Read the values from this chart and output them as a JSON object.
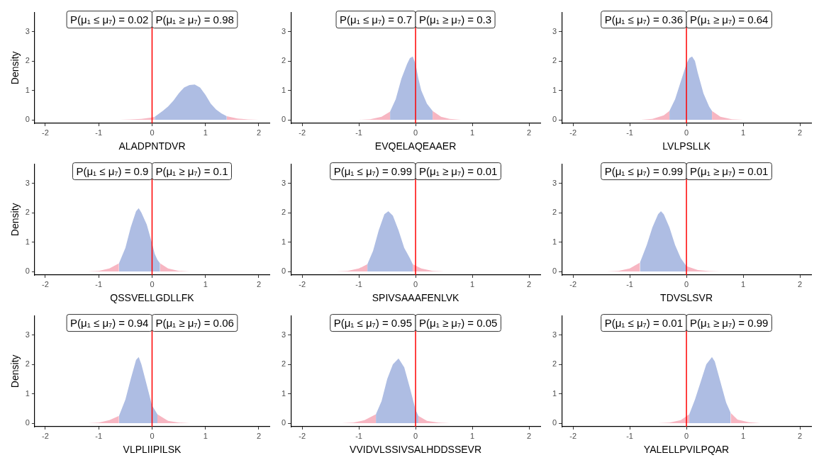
{
  "chart_data": [
    {
      "type": "area",
      "xlabel": "ALADPNTDVR",
      "ylabel": "Density",
      "xlim": [
        -2.2,
        2.2
      ],
      "xticks": [
        -2,
        -1,
        0,
        1,
        2
      ],
      "ylim": [
        -0.12,
        3.65
      ],
      "yticks": [
        0,
        1,
        2,
        3
      ],
      "grid": false,
      "legend": false,
      "ref_lines": [
        {
          "axis": "x",
          "value": 0,
          "color": "#ff0000"
        }
      ],
      "annotations": [
        "P(μ₁ ≤ μ₇) = 0.02",
        "P(μ₁ ≥ μ₇) = 0.98"
      ],
      "series": [
        {
          "color": "#f7b6c2",
          "x": [
            -0.6,
            -0.4,
            -0.2,
            0,
            0.05
          ],
          "values": [
            0,
            0.01,
            0.03,
            0.08,
            0.1
          ]
        },
        {
          "color": "#aebde3",
          "x": [
            0.05,
            0.2,
            0.3,
            0.4,
            0.5,
            0.6,
            0.7,
            0.8,
            0.9,
            1.0,
            1.1,
            1.2,
            1.3,
            1.4
          ],
          "values": [
            0.1,
            0.3,
            0.45,
            0.65,
            0.9,
            1.1,
            1.18,
            1.2,
            1.1,
            0.85,
            0.55,
            0.35,
            0.22,
            0.12
          ]
        },
        {
          "color": "#f7b6c2",
          "x": [
            1.4,
            1.6,
            1.8,
            2.0
          ],
          "values": [
            0.12,
            0.04,
            0.01,
            0
          ]
        }
      ]
    },
    {
      "type": "area",
      "xlabel": "EVQELAQEAAER",
      "xlim": [
        -2.2,
        2.2
      ],
      "xticks": [
        -2,
        -1,
        0,
        1,
        2
      ],
      "ylim": [
        -0.12,
        3.65
      ],
      "yticks": [
        0,
        1,
        2,
        3
      ],
      "grid": false,
      "legend": false,
      "ref_lines": [
        {
          "axis": "x",
          "value": 0,
          "color": "#ff0000"
        }
      ],
      "annotations": [
        "P(μ₁ ≤ μ₇) = 0.7",
        "P(μ₁ ≥ μ₇) = 0.3"
      ],
      "series": [
        {
          "color": "#f7b6c2",
          "x": [
            -1.0,
            -0.8,
            -0.6,
            -0.45
          ],
          "values": [
            0,
            0.02,
            0.1,
            0.28
          ]
        },
        {
          "color": "#aebde3",
          "x": [
            -0.45,
            -0.35,
            -0.25,
            -0.15,
            -0.1,
            -0.05,
            0,
            0.05,
            0.1,
            0.2,
            0.3
          ],
          "values": [
            0.28,
            0.7,
            1.4,
            1.9,
            2.1,
            2.15,
            1.9,
            1.4,
            1.0,
            0.55,
            0.3
          ]
        },
        {
          "color": "#f7b6c2",
          "x": [
            0.3,
            0.45,
            0.6,
            0.8
          ],
          "values": [
            0.3,
            0.1,
            0.03,
            0
          ]
        }
      ]
    },
    {
      "type": "area",
      "xlabel": "LVLPSLLK",
      "xlim": [
        -2.2,
        2.2
      ],
      "xticks": [
        -2,
        -1,
        0,
        1,
        2
      ],
      "ylim": [
        -0.12,
        3.65
      ],
      "yticks": [
        0,
        1,
        2,
        3
      ],
      "grid": false,
      "legend": false,
      "ref_lines": [
        {
          "axis": "x",
          "value": 0,
          "color": "#ff0000"
        }
      ],
      "annotations": [
        "P(μ₁ ≤ μ₇) = 0.36",
        "P(μ₁ ≥ μ₇) = 0.64"
      ],
      "series": [
        {
          "color": "#f7b6c2",
          "x": [
            -0.8,
            -0.6,
            -0.4,
            -0.3
          ],
          "values": [
            0,
            0.03,
            0.15,
            0.3
          ]
        },
        {
          "color": "#aebde3",
          "x": [
            -0.3,
            -0.2,
            -0.1,
            0,
            0.05,
            0.1,
            0.15,
            0.2,
            0.3,
            0.4,
            0.45
          ],
          "values": [
            0.3,
            0.7,
            1.3,
            1.9,
            2.1,
            2.15,
            2.0,
            1.6,
            0.9,
            0.45,
            0.3
          ]
        },
        {
          "color": "#f7b6c2",
          "x": [
            0.45,
            0.6,
            0.8,
            1.0
          ],
          "values": [
            0.3,
            0.1,
            0.02,
            0
          ]
        }
      ]
    },
    {
      "type": "area",
      "xlabel": "QSSVELLGDLLFK",
      "ylabel": "Density",
      "xlim": [
        -2.2,
        2.2
      ],
      "xticks": [
        -2,
        -1,
        0,
        1,
        2
      ],
      "ylim": [
        -0.12,
        3.65
      ],
      "yticks": [
        0,
        1,
        2,
        3
      ],
      "grid": false,
      "legend": false,
      "ref_lines": [
        {
          "axis": "x",
          "value": 0,
          "color": "#ff0000"
        }
      ],
      "annotations": [
        "P(μ₁ ≤ μ₇) = 0.9",
        "P(μ₁ ≥ μ₇) = 0.1"
      ],
      "series": [
        {
          "color": "#f7b6c2",
          "x": [
            -1.2,
            -1.0,
            -0.8,
            -0.62
          ],
          "values": [
            0,
            0.02,
            0.1,
            0.28
          ]
        },
        {
          "color": "#aebde3",
          "x": [
            -0.62,
            -0.5,
            -0.4,
            -0.3,
            -0.25,
            -0.2,
            -0.1,
            0,
            0.05,
            0.1,
            0.15
          ],
          "values": [
            0.28,
            0.8,
            1.5,
            2.05,
            2.15,
            2.0,
            1.6,
            0.95,
            0.6,
            0.4,
            0.28
          ]
        },
        {
          "color": "#f7b6c2",
          "x": [
            0.15,
            0.3,
            0.5,
            0.7
          ],
          "values": [
            0.28,
            0.1,
            0.02,
            0
          ]
        }
      ]
    },
    {
      "type": "area",
      "xlabel": "SPIVSAAAFENLVK",
      "xlim": [
        -2.2,
        2.2
      ],
      "xticks": [
        -2,
        -1,
        0,
        1,
        2
      ],
      "ylim": [
        -0.12,
        3.65
      ],
      "yticks": [
        0,
        1,
        2,
        3
      ],
      "grid": false,
      "legend": false,
      "ref_lines": [
        {
          "axis": "x",
          "value": 0,
          "color": "#ff0000"
        }
      ],
      "annotations": [
        "P(μ₁ ≤ μ₇) = 0.99",
        "P(μ₁ ≥ μ₇) = 0.01"
      ],
      "series": [
        {
          "color": "#f7b6c2",
          "x": [
            -1.4,
            -1.2,
            -1.0,
            -0.85
          ],
          "values": [
            0,
            0.02,
            0.1,
            0.25
          ]
        },
        {
          "color": "#aebde3",
          "x": [
            -0.85,
            -0.75,
            -0.65,
            -0.55,
            -0.48,
            -0.4,
            -0.3,
            -0.2,
            -0.1,
            -0.05
          ],
          "values": [
            0.25,
            0.7,
            1.4,
            1.95,
            2.05,
            1.9,
            1.4,
            0.8,
            0.45,
            0.25
          ]
        },
        {
          "color": "#f7b6c2",
          "x": [
            -0.05,
            0.1,
            0.3,
            0.5
          ],
          "values": [
            0.25,
            0.1,
            0.02,
            0
          ]
        }
      ]
    },
    {
      "type": "area",
      "xlabel": "TDVSLSVR",
      "xlim": [
        -2.2,
        2.2
      ],
      "xticks": [
        -2,
        -1,
        0,
        1,
        2
      ],
      "ylim": [
        -0.12,
        3.65
      ],
      "yticks": [
        0,
        1,
        2,
        3
      ],
      "grid": false,
      "legend": false,
      "ref_lines": [
        {
          "axis": "x",
          "value": 0,
          "color": "#ff0000"
        }
      ],
      "annotations": [
        "P(μ₁ ≤ μ₇) = 0.99",
        "P(μ₁ ≥ μ₇) = 0.01"
      ],
      "series": [
        {
          "color": "#f7b6c2",
          "x": [
            -1.4,
            -1.2,
            -1.0,
            -0.82
          ],
          "values": [
            0,
            0.02,
            0.1,
            0.3
          ]
        },
        {
          "color": "#aebde3",
          "x": [
            -0.82,
            -0.7,
            -0.6,
            -0.5,
            -0.45,
            -0.4,
            -0.3,
            -0.2,
            -0.1,
            0
          ],
          "values": [
            0.3,
            0.9,
            1.5,
            1.95,
            2.05,
            1.95,
            1.5,
            0.9,
            0.45,
            0.18
          ]
        },
        {
          "color": "#f7b6c2",
          "x": [
            0,
            0.2,
            0.4,
            0.6
          ],
          "values": [
            0.18,
            0.05,
            0.01,
            0
          ]
        }
      ]
    },
    {
      "type": "area",
      "xlabel": "VLPLIIPILSK",
      "ylabel": "Density",
      "xlim": [
        -2.2,
        2.2
      ],
      "xticks": [
        -2,
        -1,
        0,
        1,
        2
      ],
      "ylim": [
        -0.12,
        3.65
      ],
      "yticks": [
        0,
        1,
        2,
        3
      ],
      "grid": false,
      "legend": false,
      "ref_lines": [
        {
          "axis": "x",
          "value": 0,
          "color": "#ff0000"
        }
      ],
      "annotations": [
        "P(μ₁ ≤ μ₇) = 0.94",
        "P(μ₁ ≥ μ₇) = 0.06"
      ],
      "series": [
        {
          "color": "#f7b6c2",
          "x": [
            -1.2,
            -1.0,
            -0.8,
            -0.62
          ],
          "values": [
            0,
            0.02,
            0.1,
            0.25
          ]
        },
        {
          "color": "#aebde3",
          "x": [
            -0.62,
            -0.5,
            -0.4,
            -0.3,
            -0.25,
            -0.2,
            -0.1,
            0,
            0.05,
            0.1
          ],
          "values": [
            0.25,
            0.8,
            1.5,
            2.15,
            2.25,
            2.0,
            1.3,
            0.6,
            0.45,
            0.3
          ]
        },
        {
          "color": "#f7b6c2",
          "x": [
            0.1,
            0.3,
            0.5,
            0.7
          ],
          "values": [
            0.3,
            0.08,
            0.02,
            0
          ]
        }
      ]
    },
    {
      "type": "area",
      "xlabel": "VVIDVLSSIVSALHDDSSEVR",
      "xlim": [
        -2.2,
        2.2
      ],
      "xticks": [
        -2,
        -1,
        0,
        1,
        2
      ],
      "ylim": [
        -0.12,
        3.65
      ],
      "yticks": [
        0,
        1,
        2,
        3
      ],
      "grid": false,
      "legend": false,
      "ref_lines": [
        {
          "axis": "x",
          "value": 0,
          "color": "#ff0000"
        }
      ],
      "annotations": [
        "P(μ₁ ≤ μ₇) = 0.95",
        "P(μ₁ ≥ μ₇) = 0.05"
      ],
      "series": [
        {
          "color": "#f7b6c2",
          "x": [
            -1.3,
            -1.1,
            -0.9,
            -0.7
          ],
          "values": [
            0,
            0.02,
            0.1,
            0.3
          ]
        },
        {
          "color": "#aebde3",
          "x": [
            -0.7,
            -0.6,
            -0.5,
            -0.4,
            -0.3,
            -0.2,
            -0.1,
            0,
            0.05
          ],
          "values": [
            0.3,
            0.75,
            1.5,
            2.0,
            2.2,
            1.9,
            1.2,
            0.45,
            0.25
          ]
        },
        {
          "color": "#f7b6c2",
          "x": [
            0.05,
            0.2,
            0.4,
            0.6
          ],
          "values": [
            0.25,
            0.08,
            0.02,
            0
          ]
        }
      ]
    },
    {
      "type": "area",
      "xlabel": "YALELLPVILPQAR",
      "xlim": [
        -2.2,
        2.2
      ],
      "xticks": [
        -2,
        -1,
        0,
        1,
        2
      ],
      "ylim": [
        -0.12,
        3.65
      ],
      "yticks": [
        0,
        1,
        2,
        3
      ],
      "grid": false,
      "legend": false,
      "ref_lines": [
        {
          "axis": "x",
          "value": 0,
          "color": "#ff0000"
        }
      ],
      "annotations": [
        "P(μ₁ ≤ μ₇) = 0.01",
        "P(μ₁ ≥ μ₇) = 0.99"
      ],
      "series": [
        {
          "color": "#f7b6c2",
          "x": [
            -0.5,
            -0.3,
            -0.1,
            0.05
          ],
          "values": [
            0,
            0.02,
            0.1,
            0.3
          ]
        },
        {
          "color": "#aebde3",
          "x": [
            0.05,
            0.15,
            0.25,
            0.35,
            0.45,
            0.5,
            0.6,
            0.7,
            0.78
          ],
          "values": [
            0.3,
            0.8,
            1.4,
            2.0,
            2.25,
            2.1,
            1.4,
            0.7,
            0.35
          ]
        },
        {
          "color": "#f7b6c2",
          "x": [
            0.78,
            0.9,
            1.1,
            1.3
          ],
          "values": [
            0.35,
            0.12,
            0.03,
            0
          ]
        }
      ]
    }
  ]
}
